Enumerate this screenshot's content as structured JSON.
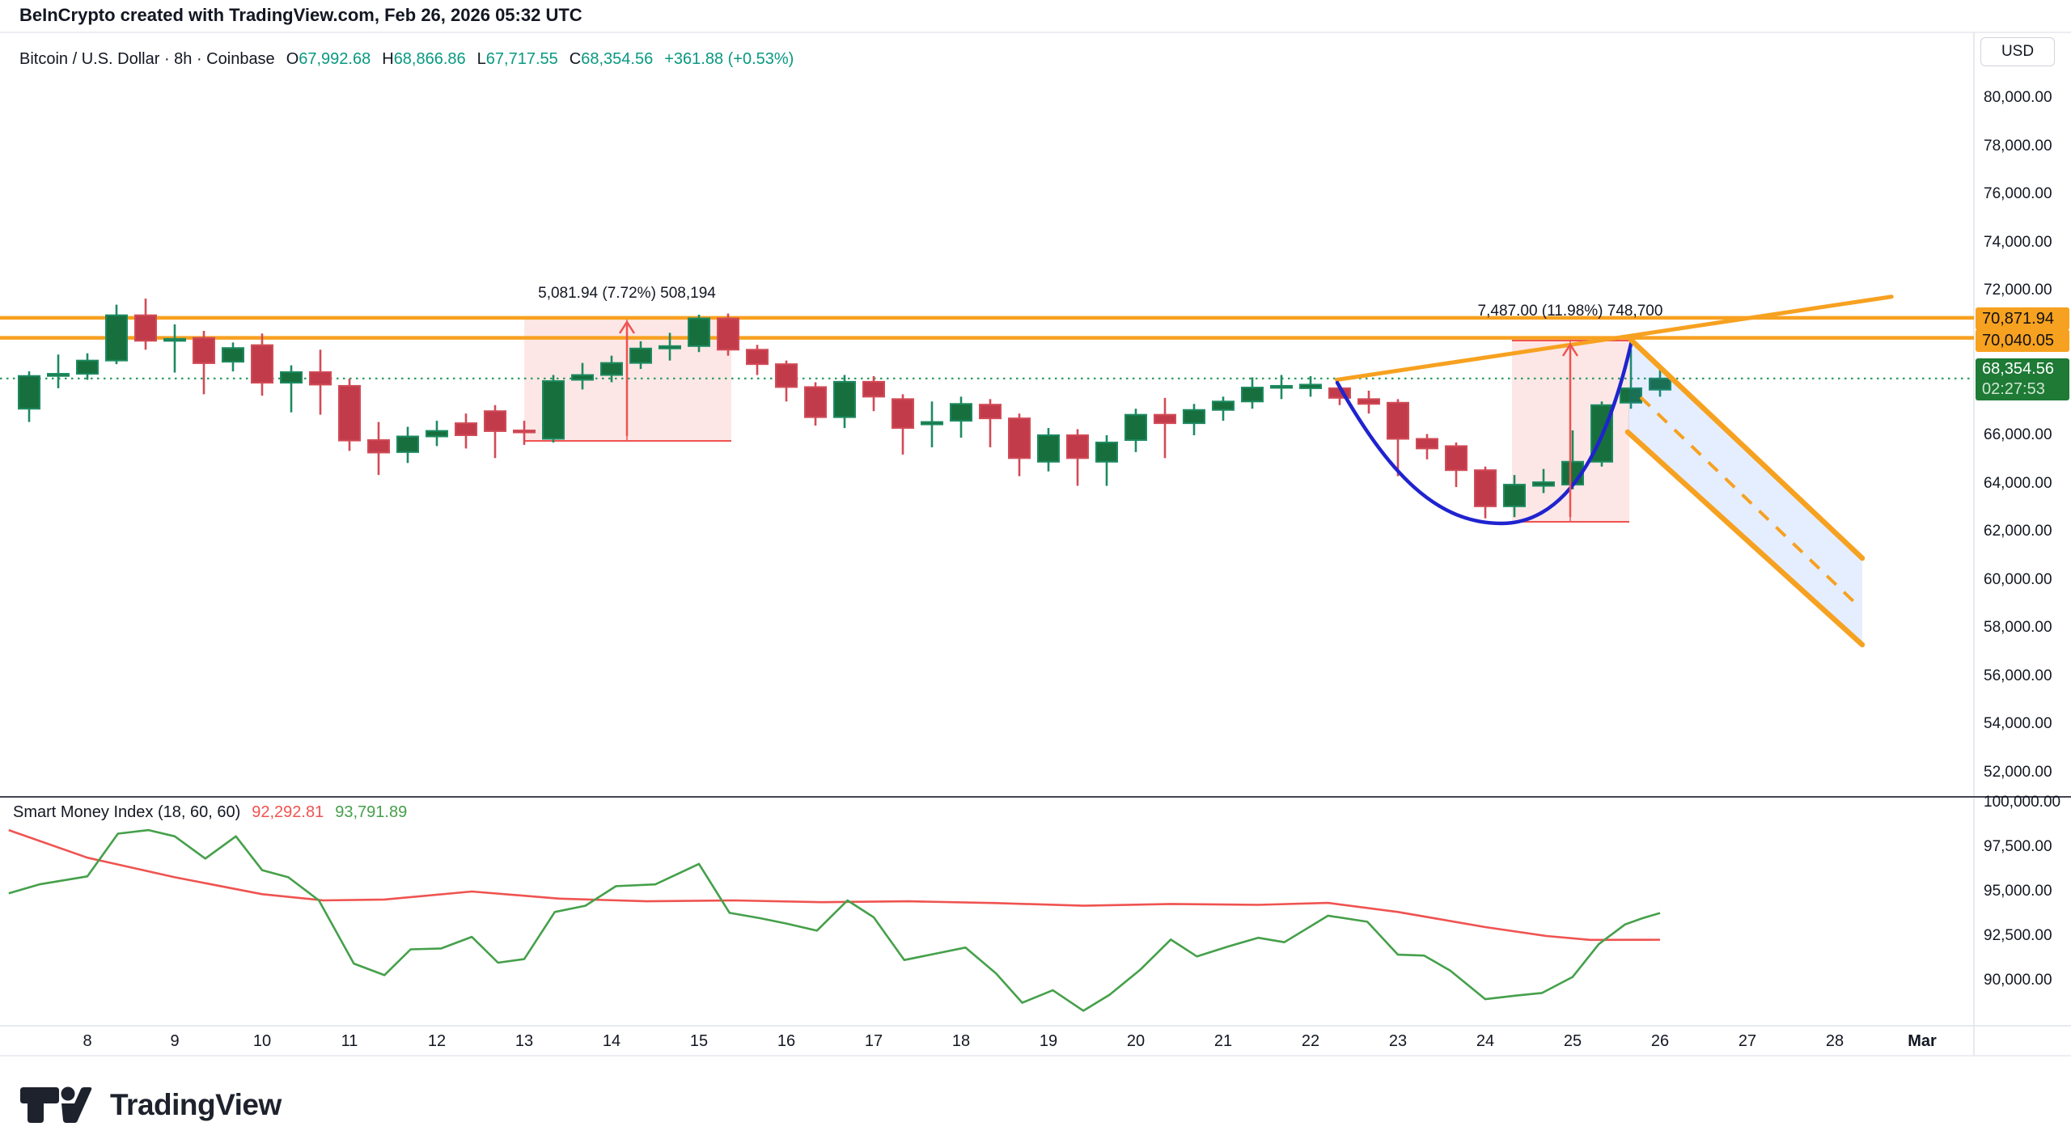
{
  "header": {
    "title": "BeInCrypto created with TradingView.com, Feb 26, 2026 05:32 UTC"
  },
  "legend": {
    "symbol": "Bitcoin / U.S. Dollar · 8h · Coinbase",
    "open_label": "O",
    "open": "67,992.68",
    "high_label": "H",
    "high": "68,866.86",
    "low_label": "L",
    "low": "67,717.55",
    "close_label": "C",
    "close": "68,354.56",
    "change": "+361.88 (+0.53%)"
  },
  "price_axis": {
    "currency": "USD",
    "ticks": [
      {
        "label": "80,000.00",
        "value": 80000
      },
      {
        "label": "78,000.00",
        "value": 78000
      },
      {
        "label": "76,000.00",
        "value": 76000
      },
      {
        "label": "74,000.00",
        "value": 74000
      },
      {
        "label": "72,000.00",
        "value": 72000
      },
      {
        "label": "66,000.00",
        "value": 66000
      },
      {
        "label": "64,000.00",
        "value": 64000
      },
      {
        "label": "62,000.00",
        "value": 62000
      },
      {
        "label": "60,000.00",
        "value": 60000
      },
      {
        "label": "58,000.00",
        "value": 58000
      },
      {
        "label": "56,000.00",
        "value": 56000
      },
      {
        "label": "54,000.00",
        "value": 54000
      },
      {
        "label": "52,000.00",
        "value": 52000
      }
    ],
    "badge_resistance1": "70,871.94",
    "badge_resistance2": "70,040.05",
    "badge_last": "68,354.56",
    "countdown": "02:27:53"
  },
  "indicator_axis": {
    "ticks": [
      {
        "label": "100,000.00",
        "value": 100000
      },
      {
        "label": "97,500.00",
        "value": 97500
      },
      {
        "label": "95,000.00",
        "value": 95000
      },
      {
        "label": "92,500.00",
        "value": 92500
      },
      {
        "label": "90,000.00",
        "value": 90000
      }
    ]
  },
  "time_axis": {
    "labels": [
      {
        "label": "8",
        "day": 8
      },
      {
        "label": "9",
        "day": 9
      },
      {
        "label": "10",
        "day": 10
      },
      {
        "label": "11",
        "day": 11
      },
      {
        "label": "12",
        "day": 12
      },
      {
        "label": "13",
        "day": 13
      },
      {
        "label": "14",
        "day": 14
      },
      {
        "label": "15",
        "day": 15
      },
      {
        "label": "16",
        "day": 16
      },
      {
        "label": "17",
        "day": 17
      },
      {
        "label": "18",
        "day": 18
      },
      {
        "label": "19",
        "day": 19
      },
      {
        "label": "20",
        "day": 20
      },
      {
        "label": "21",
        "day": 21
      },
      {
        "label": "22",
        "day": 22
      },
      {
        "label": "23",
        "day": 23
      },
      {
        "label": "24",
        "day": 24
      },
      {
        "label": "25",
        "day": 25
      },
      {
        "label": "26",
        "day": 26
      },
      {
        "label": "27",
        "day": 27
      },
      {
        "label": "28",
        "day": 28
      },
      {
        "label": "Mar",
        "day": 29,
        "bold": true
      }
    ]
  },
  "annotations": {
    "measure1": "5,081.94 (7.72%) 508,194",
    "measure2": "7,487.00 (11.98%) 748,700"
  },
  "smi": {
    "title": "Smart Money Index (18, 60, 60)",
    "value_red": "92,292.81",
    "value_green": "93,791.89"
  },
  "footer": {
    "brand": "TradingView"
  },
  "colors": {
    "up_fill": "#176f3d",
    "up_stroke": "#1d8a60",
    "down_fill": "#c13b4b",
    "down_stroke": "#d14b56",
    "orange": "#f7a120",
    "blue_curve": "#2023cf",
    "channel_fill": "rgba(49,121,245,0.13)",
    "pink_fill": "rgba(239,83,80,0.14)",
    "red_tool": "#ef5350",
    "smi_green": "#45a04a",
    "smi_red": "#ef5350",
    "teal_value": "#089981",
    "dotted_last": "#2f9e63",
    "badge_orange": "#f7a120",
    "badge_green": "#1e7a35"
  },
  "chart_data": {
    "type": "candlestick",
    "symbol": "Bitcoin / U.S. Dollar",
    "timeframe": "8h",
    "exchange": "Coinbase",
    "price_axis_range": [
      52000,
      80000
    ],
    "levels": {
      "resistance1": 70871.94,
      "resistance2": 70040.05,
      "last_price": 68354.56
    },
    "measured_moves": [
      {
        "text": "5,081.94 (7.72%) 508,194",
        "from_price": 65838,
        "to_price": 70920,
        "day_start": 13.0,
        "day_end": 15.37
      },
      {
        "text": "7,487.00 (11.98%) 748,700",
        "from_price": 62490,
        "to_price": 69977,
        "day_start": 24.34,
        "day_end": 25.67
      }
    ],
    "candles_note": "8h bars, 3 per day, first bar = Feb 7 16:00, last bar = Feb 26 00:00 (close 68354.56)",
    "candles": [
      [
        67100,
        68650,
        66550,
        68460
      ],
      [
        68460,
        69350,
        67950,
        68550
      ],
      [
        68550,
        69400,
        68300,
        69100
      ],
      [
        69100,
        71420,
        68950,
        70980
      ],
      [
        70980,
        71670,
        69550,
        69920
      ],
      [
        69920,
        70600,
        68600,
        70000
      ],
      [
        70040,
        70330,
        67700,
        68990
      ],
      [
        69050,
        69850,
        68650,
        69620
      ],
      [
        69740,
        70220,
        67640,
        68180
      ],
      [
        68180,
        68900,
        66950,
        68620
      ],
      [
        68620,
        69550,
        66850,
        68100
      ],
      [
        68050,
        68350,
        65350,
        65780
      ],
      [
        65800,
        66550,
        64350,
        65280
      ],
      [
        65300,
        66350,
        64850,
        65950
      ],
      [
        65950,
        66600,
        65550,
        66180
      ],
      [
        66500,
        66900,
        65450,
        66000
      ],
      [
        67000,
        67250,
        65050,
        66170
      ],
      [
        66200,
        66600,
        65600,
        66170
      ],
      [
        65850,
        68500,
        65700,
        68250
      ],
      [
        68300,
        69000,
        67900,
        68500
      ],
      [
        68500,
        69300,
        68200,
        69000
      ],
      [
        69000,
        69900,
        68750,
        69600
      ],
      [
        69600,
        70250,
        69100,
        69700
      ],
      [
        69700,
        71000,
        69450,
        70850
      ],
      [
        70850,
        71050,
        69300,
        69550
      ],
      [
        69550,
        69750,
        68500,
        68950
      ],
      [
        68950,
        69100,
        67400,
        68000
      ],
      [
        68000,
        68200,
        66400,
        66750
      ],
      [
        66750,
        68500,
        66300,
        68220
      ],
      [
        68220,
        68450,
        67000,
        67600
      ],
      [
        67500,
        67700,
        65200,
        66300
      ],
      [
        66450,
        67400,
        65500,
        66550
      ],
      [
        66600,
        67600,
        65900,
        67300
      ],
      [
        67270,
        67500,
        65500,
        66700
      ],
      [
        66700,
        66900,
        64300,
        65050
      ],
      [
        64900,
        66300,
        64500,
        66000
      ],
      [
        66000,
        66250,
        63900,
        65050
      ],
      [
        64900,
        66000,
        63900,
        65700
      ],
      [
        65800,
        67100,
        65300,
        66850
      ],
      [
        66850,
        67550,
        65050,
        66500
      ],
      [
        66500,
        67300,
        66000,
        67050
      ],
      [
        67050,
        67600,
        66600,
        67400
      ],
      [
        67400,
        68400,
        67100,
        67980
      ],
      [
        67980,
        68500,
        67500,
        68050
      ],
      [
        67950,
        68450,
        67600,
        68100
      ],
      [
        67950,
        68100,
        67250,
        67550
      ],
      [
        67500,
        67850,
        66900,
        67300
      ],
      [
        67350,
        67500,
        64300,
        65850
      ],
      [
        65850,
        66050,
        65000,
        65450
      ],
      [
        65550,
        65700,
        63850,
        64550
      ],
      [
        64550,
        64700,
        62550,
        63050
      ],
      [
        63050,
        64350,
        62600,
        63950
      ],
      [
        63900,
        64600,
        63600,
        64050
      ],
      [
        63950,
        66200,
        63750,
        64900
      ],
      [
        64900,
        67400,
        64700,
        67250
      ],
      [
        67350,
        69550,
        67100,
        67950
      ],
      [
        67890,
        68730,
        67600,
        68354.56
      ]
    ],
    "smi": {
      "name": "Smart Money Index",
      "params": [
        18,
        60,
        60
      ],
      "axis_range": [
        90000,
        100000
      ],
      "green": [
        [
          7.1,
          94900
        ],
        [
          7.45,
          95400
        ],
        [
          8,
          95850
        ],
        [
          8.35,
          98250
        ],
        [
          8.7,
          98450
        ],
        [
          9,
          98100
        ],
        [
          9.35,
          96850
        ],
        [
          9.7,
          98100
        ],
        [
          10,
          96200
        ],
        [
          10.3,
          95800
        ],
        [
          10.65,
          94500
        ],
        [
          11.05,
          90950
        ],
        [
          11.4,
          90300
        ],
        [
          11.7,
          91750
        ],
        [
          12.05,
          91800
        ],
        [
          12.4,
          92450
        ],
        [
          12.7,
          91000
        ],
        [
          13,
          91200
        ],
        [
          13.35,
          93850
        ],
        [
          13.7,
          94200
        ],
        [
          14.05,
          95300
        ],
        [
          14.5,
          95400
        ],
        [
          15,
          96550
        ],
        [
          15.35,
          93800
        ],
        [
          15.7,
          93500
        ],
        [
          16,
          93200
        ],
        [
          16.35,
          92800
        ],
        [
          16.7,
          94500
        ],
        [
          17,
          93550
        ],
        [
          17.35,
          91150
        ],
        [
          17.7,
          91500
        ],
        [
          18.05,
          91850
        ],
        [
          18.4,
          90400
        ],
        [
          18.7,
          88750
        ],
        [
          19.05,
          89450
        ],
        [
          19.4,
          88300
        ],
        [
          19.7,
          89200
        ],
        [
          20.05,
          90600
        ],
        [
          20.4,
          92300
        ],
        [
          20.7,
          91350
        ],
        [
          21.05,
          91900
        ],
        [
          21.4,
          92400
        ],
        [
          21.7,
          92150
        ],
        [
          22.2,
          93640
        ],
        [
          22.65,
          93300
        ],
        [
          23,
          91450
        ],
        [
          23.3,
          91400
        ],
        [
          23.6,
          90550
        ],
        [
          24,
          88950
        ],
        [
          24.35,
          89150
        ],
        [
          24.65,
          89300
        ],
        [
          25,
          90200
        ],
        [
          25.3,
          92050
        ],
        [
          25.6,
          93150
        ],
        [
          25.8,
          93500
        ],
        [
          26,
          93790
        ]
      ],
      "red": [
        [
          7.1,
          98450
        ],
        [
          8,
          96900
        ],
        [
          9,
          95800
        ],
        [
          10,
          94850
        ],
        [
          10.7,
          94500
        ],
        [
          11.4,
          94550
        ],
        [
          12.4,
          95000
        ],
        [
          13.4,
          94600
        ],
        [
          14.4,
          94450
        ],
        [
          15.4,
          94500
        ],
        [
          16.4,
          94400
        ],
        [
          17.4,
          94450
        ],
        [
          18.4,
          94350
        ],
        [
          19.4,
          94200
        ],
        [
          20.4,
          94300
        ],
        [
          21.4,
          94250
        ],
        [
          22.2,
          94360
        ],
        [
          23,
          93850
        ],
        [
          24,
          93000
        ],
        [
          24.7,
          92500
        ],
        [
          25.2,
          92280
        ],
        [
          26,
          92290
        ]
      ]
    },
    "drawings": {
      "cup_curve": {
        "start_day": 22.35,
        "start_price": 68250,
        "bottom_day": 24.1,
        "bottom_price": 62550,
        "end_day": 25.67,
        "end_price": 69960
      },
      "ascending_trendline": {
        "from": [
          22.3,
          68300
        ],
        "to": [
          28.65,
          71750
        ]
      },
      "descending_channel": {
        "upper_from_price": 69960,
        "upper_to_price": 60900,
        "lower_from_price": 66150,
        "lower_to_price": 57300,
        "from_day": 25.65,
        "to_day": 28.3
      }
    }
  }
}
